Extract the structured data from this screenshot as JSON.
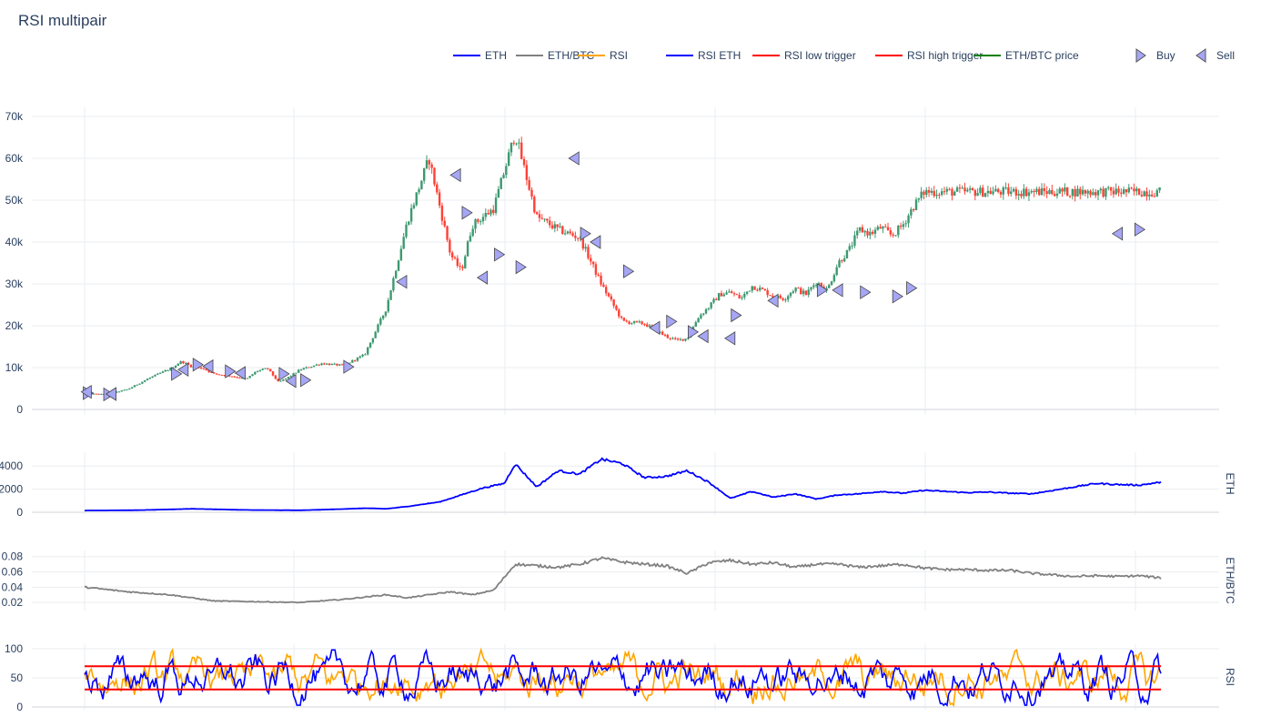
{
  "chart_data": {
    "type": "line",
    "title": "RSI multipair",
    "legend": {
      "placement": "top-right",
      "orientation": "horizontal",
      "entries": [
        {
          "name": "ETH",
          "color": "#0000ff",
          "symbol": "line"
        },
        {
          "name": "ETH/BTC",
          "color": "#808080",
          "symbol": "line"
        },
        {
          "name": "RSI",
          "color": "#ffa500",
          "symbol": "line"
        },
        {
          "name": "RSI ETH",
          "color": "#0000ff",
          "symbol": "line"
        },
        {
          "name": "RSI low trigger",
          "color": "#ff0000",
          "symbol": "line"
        },
        {
          "name": "RSI high trigger",
          "color": "#ff0000",
          "symbol": "line"
        },
        {
          "name": "ETH/BTC price",
          "color": "#008000",
          "symbol": "line"
        },
        {
          "name": "Buy",
          "color": "#a6a6f5",
          "symbol": "triangle-right"
        },
        {
          "name": "Sell",
          "color": "#a6a6f5",
          "symbol": "triangle-left"
        }
      ]
    },
    "x_range_index": [
      0,
      100
    ],
    "panels": [
      {
        "id": "price",
        "type": "candlestick",
        "ylim": [
          0,
          70000
        ],
        "yticks": [
          {
            "v": 0,
            "label": "0"
          },
          {
            "v": 10000,
            "label": "10k"
          },
          {
            "v": 20000,
            "label": "20k"
          },
          {
            "v": 30000,
            "label": "30k"
          },
          {
            "v": 40000,
            "label": "40k"
          },
          {
            "v": 50000,
            "label": "50k"
          },
          {
            "v": 60000,
            "label": "60k"
          },
          {
            "v": 70000,
            "label": "70k"
          }
        ],
        "up_color": "#3d9970",
        "down_color": "#ff4136",
        "close_series": {
          "x": [
            0,
            2,
            4,
            6,
            8,
            9,
            10,
            11,
            12,
            13,
            14,
            15,
            16,
            17,
            18,
            19,
            20,
            22,
            24,
            26,
            28,
            30,
            32,
            34,
            35,
            36,
            38,
            40,
            42,
            44,
            46,
            48,
            50,
            52,
            53,
            54,
            55,
            56,
            57,
            58,
            59,
            60,
            61,
            62,
            63,
            64,
            65,
            66,
            67,
            68,
            69,
            70,
            71,
            72,
            73,
            74,
            75,
            76,
            77,
            78,
            80,
            82,
            84,
            86,
            88,
            90,
            92,
            94,
            96,
            98,
            100
          ],
          "y": [
            3800,
            3600,
            4800,
            7500,
            9800,
            11500,
            10200,
            9800,
            8500,
            8200,
            7800,
            7200,
            9200,
            9800,
            6500,
            7800,
            9500,
            11000,
            10500,
            13000,
            24000,
            45000,
            60000,
            37000,
            33000,
            44000,
            48000,
            66000,
            46000,
            43000,
            41000,
            30000,
            21000,
            20500,
            19000,
            17500,
            16500,
            17000,
            22000,
            24500,
            27500,
            28000,
            26500,
            29500,
            28500,
            27000,
            26500,
            29000,
            27500,
            30500,
            28500,
            35000,
            38000,
            43000,
            42000,
            43500,
            41500,
            44000,
            48500,
            52000,
            52000,
            52000,
            52000,
            52000,
            52000,
            52000,
            52000,
            52000,
            52000,
            52000,
            52000
          ]
        },
        "buy_markers": [
          {
            "x": 0.3,
            "y": 3900
          },
          {
            "x": 2.2,
            "y": 3600
          },
          {
            "x": 8.5,
            "y": 8500
          },
          {
            "x": 10.5,
            "y": 10700
          },
          {
            "x": 13.5,
            "y": 9100
          },
          {
            "x": 18.5,
            "y": 8500
          },
          {
            "x": 20.5,
            "y": 7000
          },
          {
            "x": 24.5,
            "y": 10200
          },
          {
            "x": 35.5,
            "y": 47000
          },
          {
            "x": 38.5,
            "y": 37000
          },
          {
            "x": 40.5,
            "y": 34000
          },
          {
            "x": 46.5,
            "y": 42000
          },
          {
            "x": 50.5,
            "y": 33000
          },
          {
            "x": 54.5,
            "y": 21000
          },
          {
            "x": 56.5,
            "y": 18500
          },
          {
            "x": 60.5,
            "y": 22500
          },
          {
            "x": 68.5,
            "y": 28500
          },
          {
            "x": 72.5,
            "y": 28000
          },
          {
            "x": 75.5,
            "y": 27000
          },
          {
            "x": 76.8,
            "y": 29000
          },
          {
            "x": 98.0,
            "y": 43000
          }
        ],
        "sell_markers": [
          {
            "x": 0.2,
            "y": 4200
          },
          {
            "x": 2.5,
            "y": 3700
          },
          {
            "x": 9.2,
            "y": 9500
          },
          {
            "x": 11.5,
            "y": 10300
          },
          {
            "x": 14.5,
            "y": 8700
          },
          {
            "x": 19.2,
            "y": 6800
          },
          {
            "x": 29.5,
            "y": 30500
          },
          {
            "x": 34.5,
            "y": 56000
          },
          {
            "x": 37.0,
            "y": 31500
          },
          {
            "x": 45.5,
            "y": 60000
          },
          {
            "x": 47.5,
            "y": 40000
          },
          {
            "x": 53.0,
            "y": 19500
          },
          {
            "x": 57.5,
            "y": 17500
          },
          {
            "x": 60.0,
            "y": 17000
          },
          {
            "x": 64.0,
            "y": 26000
          },
          {
            "x": 70.0,
            "y": 28500
          },
          {
            "x": 96.0,
            "y": 42000
          }
        ]
      },
      {
        "id": "eth",
        "side_label": "ETH",
        "color": "#0000ff",
        "ylim": [
          0,
          5200
        ],
        "yticks": [
          {
            "v": 0,
            "label": "0"
          },
          {
            "v": 2000,
            "label": "2000"
          },
          {
            "v": 4000,
            "label": "4000"
          }
        ],
        "x": [
          0,
          5,
          10,
          15,
          20,
          24,
          26,
          28,
          30,
          33,
          35,
          37,
          39,
          40,
          42,
          44,
          46,
          48,
          50,
          52,
          54,
          56,
          58,
          60,
          62,
          64,
          66,
          68,
          70,
          72,
          74,
          76,
          78,
          80,
          82,
          84,
          86,
          88,
          90,
          92,
          94,
          96,
          98,
          100
        ],
        "y": [
          150,
          180,
          300,
          200,
          170,
          280,
          350,
          300,
          500,
          900,
          1500,
          2100,
          2500,
          4200,
          2200,
          3600,
          3300,
          4600,
          4200,
          3000,
          3100,
          3600,
          2600,
          1200,
          1800,
          1300,
          1600,
          1150,
          1500,
          1600,
          1800,
          1650,
          1900,
          1800,
          1700,
          1750,
          1650,
          1600,
          1900,
          2200,
          2500,
          2400,
          2350,
          2600
        ]
      },
      {
        "id": "ethbtc",
        "side_label": "ETH/BTC",
        "color": "#808080",
        "ylim": [
          0.013,
          0.088
        ],
        "yticks": [
          {
            "v": 0.02,
            "label": "0.02"
          },
          {
            "v": 0.04,
            "label": "0.04"
          },
          {
            "v": 0.06,
            "label": "0.06"
          },
          {
            "v": 0.08,
            "label": "0.08"
          }
        ],
        "x": [
          0,
          4,
          8,
          12,
          16,
          20,
          24,
          28,
          30,
          34,
          36,
          38,
          40,
          42,
          44,
          46,
          48,
          50,
          52,
          54,
          56,
          58,
          60,
          62,
          64,
          66,
          68,
          70,
          72,
          74,
          76,
          78,
          80,
          82,
          84,
          86,
          88,
          90,
          92,
          94,
          96,
          98,
          100
        ],
        "y": [
          0.04,
          0.034,
          0.03,
          0.022,
          0.021,
          0.02,
          0.024,
          0.03,
          0.026,
          0.034,
          0.03,
          0.036,
          0.07,
          0.068,
          0.066,
          0.07,
          0.078,
          0.073,
          0.07,
          0.068,
          0.058,
          0.072,
          0.075,
          0.07,
          0.072,
          0.066,
          0.07,
          0.07,
          0.066,
          0.068,
          0.07,
          0.065,
          0.063,
          0.063,
          0.062,
          0.062,
          0.058,
          0.056,
          0.054,
          0.055,
          0.054,
          0.055,
          0.052
        ]
      },
      {
        "id": "rsi",
        "side_label": "RSI",
        "ylim": [
          0,
          100
        ],
        "yticks": [
          {
            "v": 0,
            "label": "0"
          },
          {
            "v": 50,
            "label": "50"
          },
          {
            "v": 100,
            "label": "100"
          }
        ],
        "rsi_color": "#ffa500",
        "rsi_eth_color": "#0000ff",
        "low_trigger": {
          "value": 30,
          "color": "#ff0000"
        },
        "high_trigger": {
          "value": 70,
          "color": "#ff0000"
        }
      }
    ]
  }
}
